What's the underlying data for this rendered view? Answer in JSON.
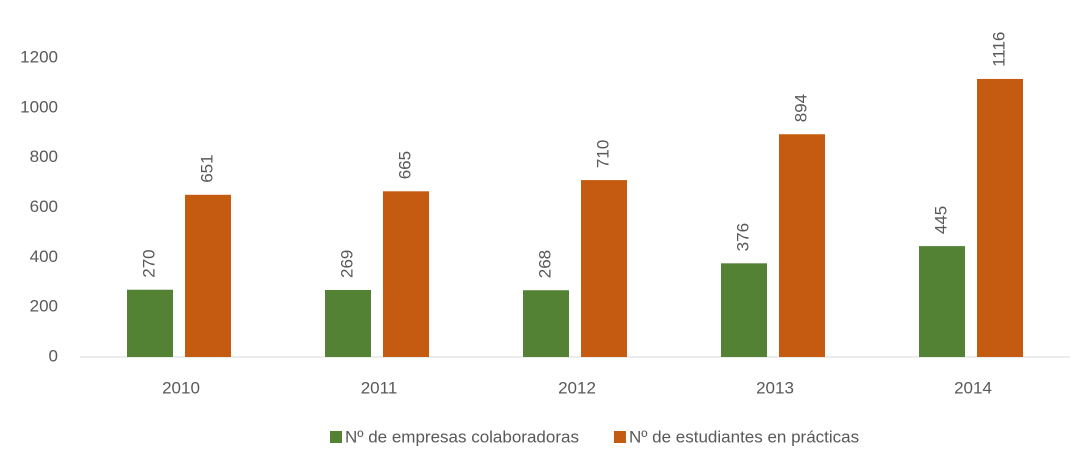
{
  "chart_data": {
    "type": "bar",
    "categories": [
      "2010",
      "2011",
      "2012",
      "2013",
      "2014"
    ],
    "series": [
      {
        "name": "Nº de empresas colaboradoras",
        "color": "#548235",
        "values": [
          270,
          269,
          268,
          376,
          445
        ]
      },
      {
        "name": "Nº de estudiantes en prácticas",
        "color": "#c55a11",
        "values": [
          651,
          665,
          710,
          894,
          1116
        ]
      }
    ],
    "ylim": [
      0,
      1200
    ],
    "yticks": [
      0,
      200,
      400,
      600,
      800,
      1000,
      1200
    ],
    "grid": false,
    "legend": "bottom"
  }
}
